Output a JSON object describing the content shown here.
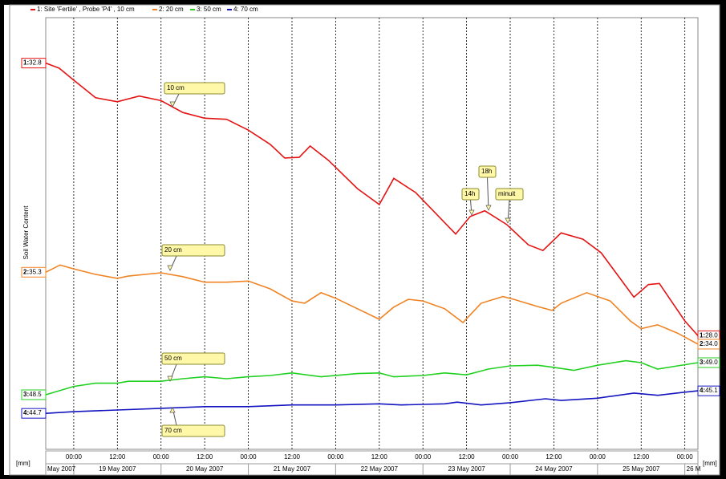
{
  "chart_data": {
    "type": "line",
    "y_label": "Soil Water Content",
    "unit_left": "[mm]",
    "unit_right": "[mm]",
    "xlim": [
      -7.7,
      171.6
    ],
    "xticks": [
      {
        "value": 0,
        "label": "00:00"
      },
      {
        "value": 12,
        "label": "12:00"
      },
      {
        "value": 24,
        "label": "00:00"
      },
      {
        "value": 36,
        "label": "12:00"
      },
      {
        "value": 48,
        "label": "00:00"
      },
      {
        "value": 60,
        "label": "12:00"
      },
      {
        "value": 72,
        "label": "00:00"
      },
      {
        "value": 84,
        "label": "12:00"
      },
      {
        "value": 96,
        "label": "00:00"
      },
      {
        "value": 108,
        "label": "12:00"
      },
      {
        "value": 120,
        "label": "00:00"
      },
      {
        "value": 132,
        "label": "12:00"
      },
      {
        "value": 144,
        "label": "00:00"
      },
      {
        "value": 156,
        "label": "12:00"
      },
      {
        "value": 168,
        "label": "00:00"
      }
    ],
    "dates": [
      "May 2007",
      "19 May 2007",
      "20 May 2007",
      "21 May 2007",
      "22 May 2007",
      "23 May 2007",
      "24 May 2007",
      "25 May 2007",
      "26 M"
    ],
    "grid": true,
    "series": [
      {
        "name": "1: Site 'Fertile' , Probe 'P4' , 10 cm",
        "id": "1:",
        "start_label": "32.8",
        "end_label": "28.0",
        "color": "#e41414",
        "ylim": [
          26,
          33.6
        ],
        "x": [
          -7.7,
          -4,
          0,
          6,
          12,
          18,
          24,
          30,
          36,
          42,
          48,
          54,
          58,
          62,
          65,
          70,
          78,
          84,
          88,
          94,
          105,
          109,
          113,
          119,
          125,
          129,
          134,
          140,
          145,
          154,
          158,
          161,
          168,
          171.6
        ],
        "values": [
          32.8,
          32.71,
          32.5,
          32.19,
          32.12,
          32.22,
          32.14,
          31.93,
          31.83,
          31.81,
          31.62,
          31.37,
          31.13,
          31.14,
          31.34,
          31.09,
          30.59,
          30.31,
          30.77,
          30.52,
          29.79,
          30.1,
          30.2,
          29.96,
          29.6,
          29.5,
          29.81,
          29.7,
          29.46,
          28.68,
          28.9,
          28.92,
          28.26,
          28.0
        ]
      },
      {
        "name": "2: 20 cm",
        "id": "2:",
        "start_label": "35.3",
        "end_label": "34.0",
        "color": "#f08424",
        "ylim": [
          32.1,
          39.9
        ],
        "x": [
          -7.7,
          -3.75,
          0,
          6,
          12,
          15,
          24,
          30,
          36,
          42,
          48,
          54,
          60,
          63.5,
          68,
          72,
          78,
          84,
          88,
          92,
          96,
          102,
          107,
          112,
          118,
          121,
          127.5,
          131.5,
          134,
          141,
          147.5,
          153,
          156,
          160.5,
          166,
          171.6
        ],
        "values": [
          35.3,
          35.43,
          35.36,
          35.26,
          35.19,
          35.23,
          35.29,
          35.22,
          35.12,
          35.12,
          35.14,
          35.0,
          34.78,
          34.74,
          34.93,
          34.83,
          34.64,
          34.45,
          34.67,
          34.81,
          34.78,
          34.64,
          34.39,
          34.74,
          34.86,
          34.81,
          34.68,
          34.61,
          34.74,
          34.93,
          34.78,
          34.42,
          34.28,
          34.35,
          34.2,
          34.0
        ]
      },
      {
        "name": "3: 50 cm",
        "id": "3:",
        "start_label": "48.5",
        "end_label": "49.0",
        "color": "#22d022",
        "ylim": [
          47.65,
          54.375
        ],
        "x": [
          -7.7,
          0,
          6,
          12,
          15,
          24,
          30,
          36,
          42,
          48,
          54,
          60,
          68,
          78,
          84,
          88,
          96,
          102,
          108,
          114,
          120,
          127.5,
          131.5,
          137.5,
          144,
          151.8,
          156,
          160.5,
          166,
          171.6
        ],
        "values": [
          48.5,
          48.63,
          48.68,
          48.68,
          48.71,
          48.71,
          48.75,
          48.78,
          48.75,
          48.78,
          48.8,
          48.84,
          48.78,
          48.83,
          48.84,
          48.78,
          48.8,
          48.84,
          48.81,
          48.9,
          48.95,
          48.96,
          48.93,
          48.88,
          48.96,
          49.03,
          49.0,
          48.9,
          48.95,
          49.0
        ]
      },
      {
        "name": "4: 70 cm",
        "id": "4:",
        "start_label": "44.7",
        "end_label": "45.1",
        "color": "#1414c0",
        "ylim": [
          44.06,
          51.74
        ],
        "x": [
          -7.7,
          0,
          12,
          24,
          36,
          48,
          60,
          72,
          84,
          90,
          96,
          102,
          105.4,
          112,
          120,
          129.7,
          134,
          144,
          154,
          160.6,
          167.2,
          171.6
        ],
        "values": [
          44.7,
          44.73,
          44.76,
          44.79,
          44.82,
          44.82,
          44.85,
          44.85,
          44.87,
          44.85,
          44.86,
          44.87,
          44.9,
          44.85,
          44.89,
          44.96,
          44.93,
          44.97,
          45.06,
          45.02,
          45.07,
          45.1
        ]
      }
    ],
    "annotations": [
      {
        "text": "10 cm"
      },
      {
        "text": "20 cm"
      },
      {
        "text": "50 cm"
      },
      {
        "text": "70 cm"
      },
      {
        "text": "14h"
      },
      {
        "text": "18h"
      },
      {
        "text": "minuit"
      }
    ]
  }
}
